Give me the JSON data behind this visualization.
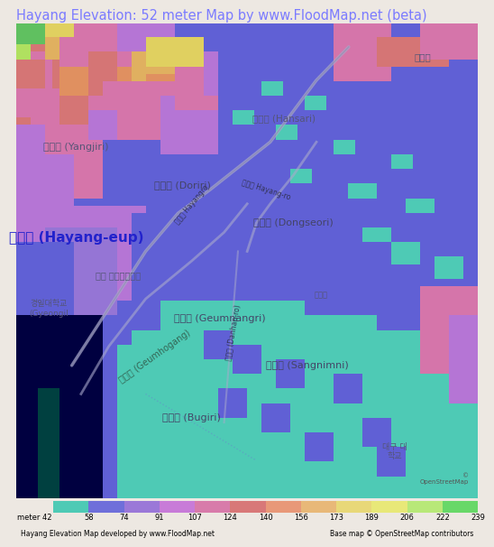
{
  "title": "Hayang Elevation: 52 meter Map by www.FloodMap.net (beta)",
  "title_color": "#7b7bff",
  "title_fontsize": 10.5,
  "bg_color": "#ede8e2",
  "colorbar_labels": [
    "meter 42",
    "58",
    "74",
    "91",
    "107",
    "124",
    "140",
    "156",
    "173",
    "189",
    "206",
    "222",
    "239"
  ],
  "colorbar_values": [
    42,
    58,
    74,
    91,
    107,
    124,
    140,
    156,
    173,
    189,
    206,
    222,
    239
  ],
  "colorbar_colors": [
    "#4ecab5",
    "#6f6fda",
    "#9b78d8",
    "#c87bd8",
    "#d87baa",
    "#d87878",
    "#e89878",
    "#e8b878",
    "#e8d878",
    "#e8e878",
    "#b8e878",
    "#68d868"
  ],
  "footer_left": "Hayang Elevation Map developed by www.FloodMap.net",
  "footer_right": "Base map © OpenStreetMap contributors"
}
